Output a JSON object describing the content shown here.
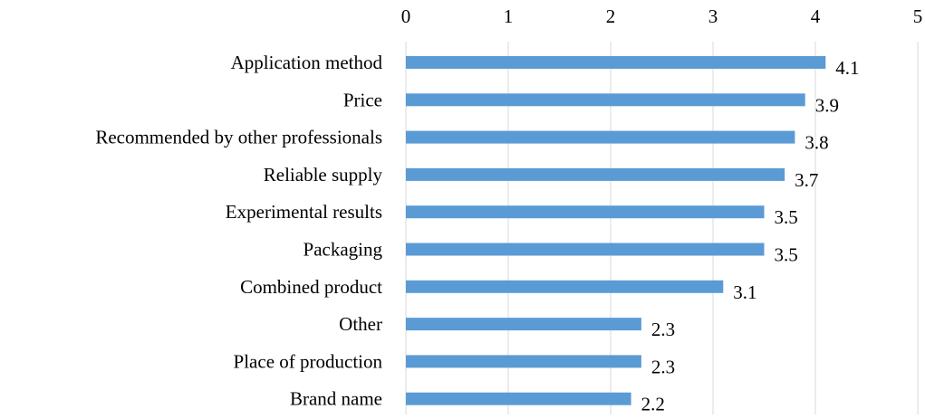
{
  "chart_data": {
    "type": "bar",
    "orientation": "horizontal",
    "title": "",
    "xlabel": "",
    "ylabel": "",
    "categories": [
      "Application method",
      "Price",
      "Recommended by other professionals",
      "Reliable supply",
      "Experimental results",
      "Packaging",
      "Combined product",
      "Other",
      "Place of production",
      "Brand name"
    ],
    "values": [
      4.1,
      3.9,
      3.8,
      3.7,
      3.5,
      3.5,
      3.1,
      2.3,
      2.3,
      2.2
    ],
    "data_labels": [
      "4.1",
      "3.9",
      "3.8",
      "3.7",
      "3.5",
      "3.5",
      "3.1",
      "2.3",
      "2.3",
      "2.2"
    ],
    "xlim": [
      0,
      5
    ],
    "x_ticks": [
      "0",
      "1",
      "2",
      "3",
      "4",
      "5"
    ],
    "x_axis_position": "top",
    "grid": "vertical",
    "legend": "none",
    "bar_color": "#5b9bd5"
  }
}
